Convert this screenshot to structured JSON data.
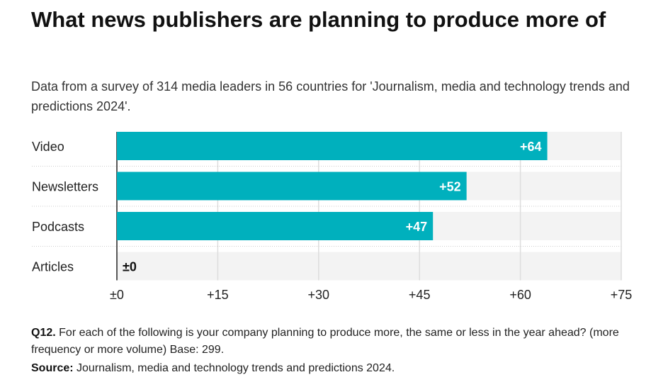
{
  "title": "What news publishers are planning to produce more of",
  "subtitle": "Data from a survey of 314 media leaders in 56 countries for 'Journalism, media and technology trends and predictions 2024'.",
  "chart_data": {
    "type": "bar",
    "orientation": "horizontal",
    "categories": [
      "Video",
      "Newsletters",
      "Podcasts",
      "Articles"
    ],
    "values": [
      64,
      52,
      47,
      0
    ],
    "data_labels": [
      "+64",
      "+52",
      "+47",
      "±0"
    ],
    "xlim": [
      0,
      75
    ],
    "xticks": [
      0,
      15,
      30,
      45,
      60,
      75
    ],
    "xtick_labels": [
      "±0",
      "+15",
      "+30",
      "+45",
      "+60",
      "+75"
    ],
    "grid": true,
    "colors": {
      "bar": "#00b0bd",
      "background_track": "#f3f3f3"
    }
  },
  "footer": {
    "question_label": "Q12.",
    "question_text": "For each of the following is your company planning to produce more, the same or less in the year ahead? (more frequency or more volume) Base: 299.",
    "source_label": "Source:",
    "source_text": "Journalism, media and technology trends and predictions 2024."
  }
}
